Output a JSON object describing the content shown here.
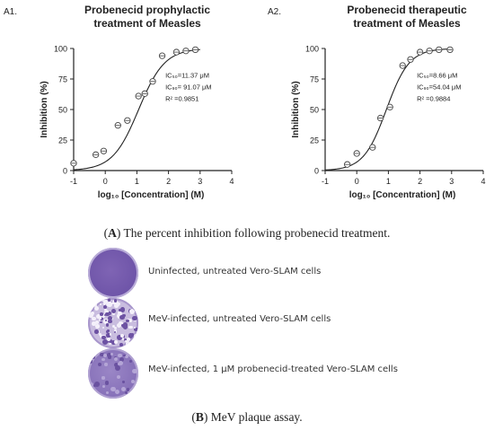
{
  "figure": {
    "caption_a_letter": "A",
    "caption_a_text": " The percent inhibition following probenecid treatment.",
    "caption_b_letter": "B",
    "caption_b_text": " MeV plaque assay.",
    "plaque_assay": {
      "wells": [
        {
          "label": "Uninfected, untreated Vero-SLAM cells",
          "appearance": "uniform-monolayer",
          "color": "#7b5fb0"
        },
        {
          "label": "MeV-infected, untreated Vero-SLAM cells",
          "appearance": "many-plaques",
          "color": "#b7a7d2"
        },
        {
          "label": "MeV-infected, 1 μM probenecid-treated Vero-SLAM cells",
          "appearance": "few-plaques",
          "color": "#8c76bd"
        }
      ]
    }
  },
  "chart_data": [
    {
      "type": "scatter",
      "panel_label": "A1.",
      "title_lines": [
        "Probenecid prophylactic",
        "treatment of Measles"
      ],
      "xlabel": "log₁₀ [Concentration] (M)",
      "ylabel": "Inhibition (%)",
      "xlim": [
        -1,
        4
      ],
      "ylim": [
        0,
        100
      ],
      "xticks": [
        -1,
        0,
        1,
        2,
        3,
        4
      ],
      "yticks": [
        0,
        25,
        50,
        75,
        100
      ],
      "annotation": [
        "IC₅₀=11.37 μM",
        "IC₉₀= 91.07 μM",
        "R² =0.9851"
      ],
      "points": [
        {
          "x": -1.0,
          "y": 6
        },
        {
          "x": -0.3,
          "y": 13
        },
        {
          "x": -0.05,
          "y": 16
        },
        {
          "x": 0.4,
          "y": 37
        },
        {
          "x": 0.7,
          "y": 41
        },
        {
          "x": 1.05,
          "y": 61
        },
        {
          "x": 1.25,
          "y": 63
        },
        {
          "x": 1.5,
          "y": 73
        },
        {
          "x": 1.8,
          "y": 94
        },
        {
          "x": 2.25,
          "y": 97
        },
        {
          "x": 2.55,
          "y": 98
        },
        {
          "x": 2.85,
          "y": 99
        }
      ],
      "fit": {
        "model": "four-parameter logistic",
        "ic50_uM": 11.37,
        "ic90_uM": 91.07,
        "r2": 0.9851,
        "bottom": 0,
        "top": 100
      }
    },
    {
      "type": "scatter",
      "panel_label": "A2.",
      "title_lines": [
        "Probenecid therapeutic",
        "treatment of Measles"
      ],
      "xlabel": "log₁₀ [Concentration] (M)",
      "ylabel": "Inhibition (%)",
      "xlim": [
        -1,
        4
      ],
      "ylim": [
        0,
        100
      ],
      "xticks": [
        -1,
        0,
        1,
        2,
        3,
        4
      ],
      "yticks": [
        0,
        25,
        50,
        75,
        100
      ],
      "annotation": [
        "IC₅₀=8.66 μM",
        "IC₉₀=54.04 μM",
        "R² =0.9884"
      ],
      "points": [
        {
          "x": -0.3,
          "y": 5
        },
        {
          "x": 0.0,
          "y": 14
        },
        {
          "x": 0.5,
          "y": 19
        },
        {
          "x": 0.75,
          "y": 43
        },
        {
          "x": 1.05,
          "y": 52
        },
        {
          "x": 1.45,
          "y": 86
        },
        {
          "x": 1.7,
          "y": 91
        },
        {
          "x": 2.0,
          "y": 97
        },
        {
          "x": 2.3,
          "y": 98
        },
        {
          "x": 2.6,
          "y": 99
        },
        {
          "x": 2.95,
          "y": 99
        }
      ],
      "fit": {
        "model": "four-parameter logistic",
        "ic50_uM": 8.66,
        "ic90_uM": 54.04,
        "r2": 0.9884,
        "bottom": 0,
        "top": 100
      }
    }
  ]
}
